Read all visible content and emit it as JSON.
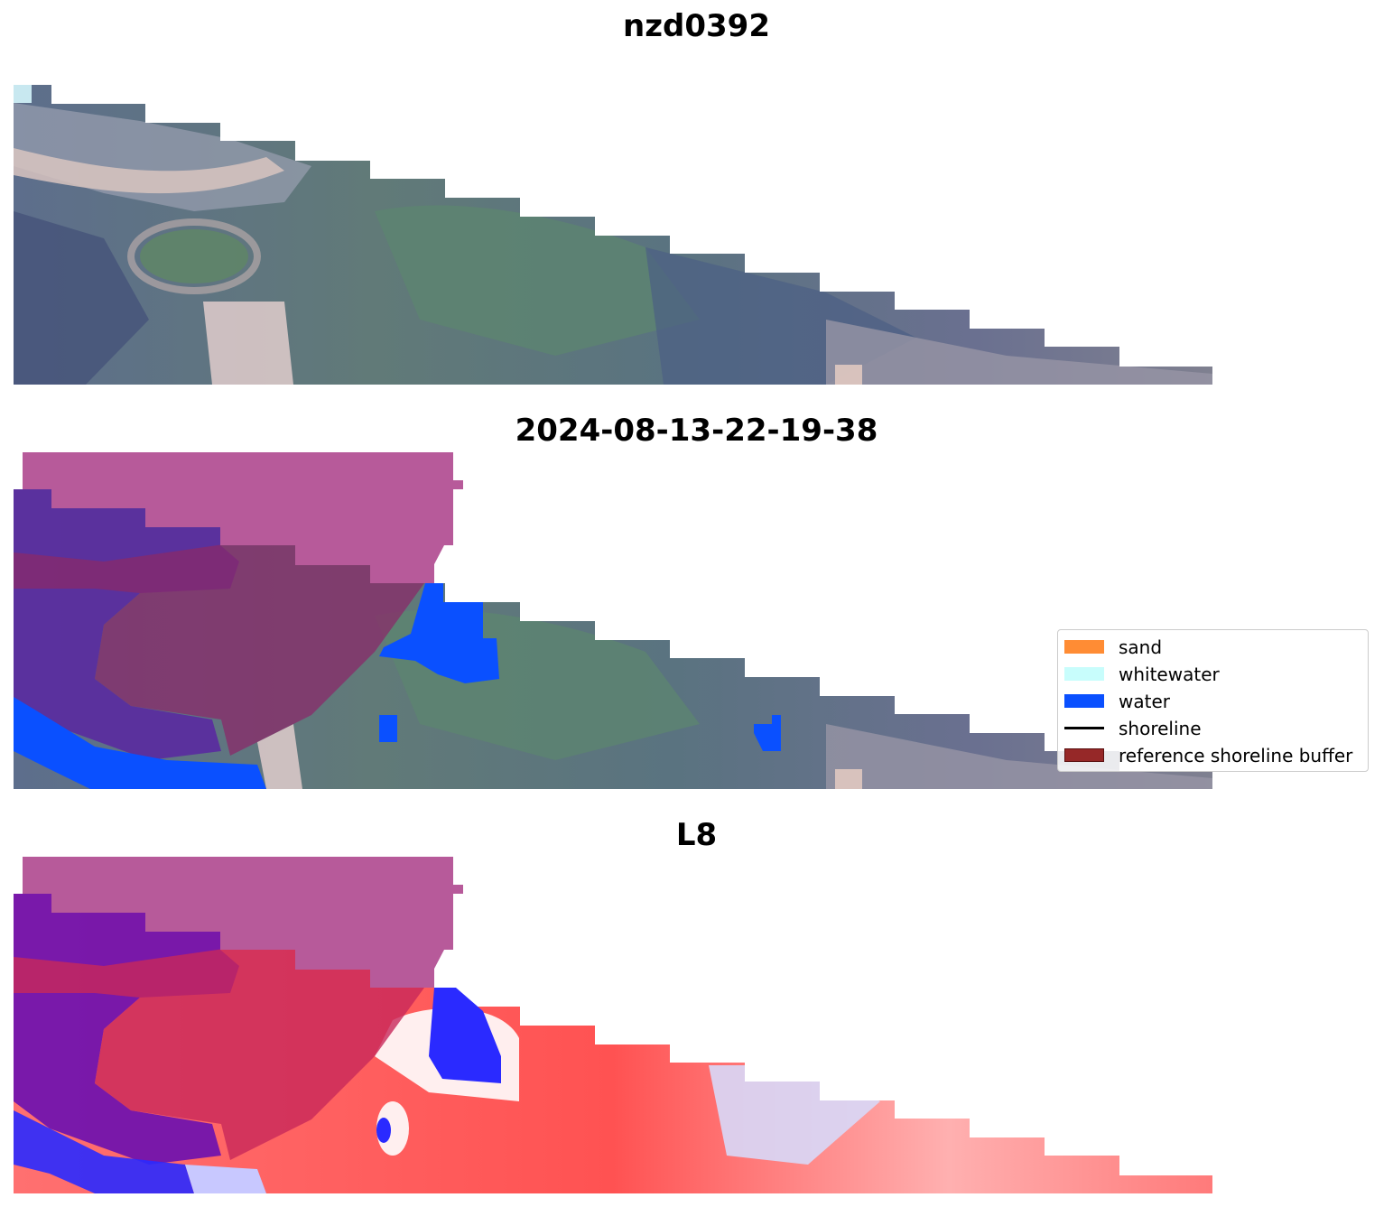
{
  "titles": {
    "image_name": "nzd0392",
    "date": "2024-08-13-22-19-38",
    "satellite": "L8"
  },
  "legend": {
    "items": [
      {
        "label": "sand",
        "color": "#ff8c34",
        "kind": "patch"
      },
      {
        "label": "whitewater",
        "color": "#c8fdfc",
        "kind": "patch"
      },
      {
        "label": "water",
        "color": "#0a50ff",
        "kind": "patch"
      },
      {
        "label": "shoreline",
        "color": "#000000",
        "kind": "line"
      },
      {
        "label": "reference shoreline buffer",
        "color": "#962828",
        "kind": "patch"
      }
    ]
  },
  "colors": {
    "buffer_overlay": "#b75a9a",
    "water_class": "#0a50ff",
    "land_green": "#5c7a70",
    "land_blue_grey": "#4c5d80",
    "sand_pink": "#c8b0b0",
    "index_positive": "#ff4444",
    "index_negative": "#2a2aff"
  }
}
